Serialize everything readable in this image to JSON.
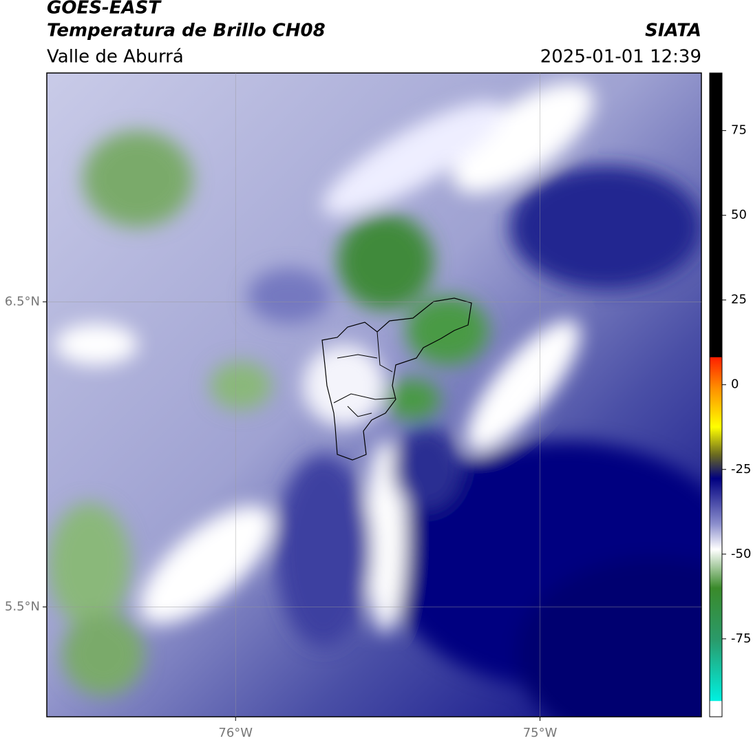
{
  "header": {
    "title": "GOES-EAST",
    "subtitle": "Temperatura de Brillo CH08",
    "region": "Valle de Aburrá",
    "agency": "SIATA",
    "datetime": "2025-01-01 12:39"
  },
  "map": {
    "xlim": [
      -76.62,
      -74.47
    ],
    "ylim": [
      5.14,
      7.25
    ],
    "lon_ticks": [
      {
        "value": -76,
        "label": "76°W"
      },
      {
        "value": -75,
        "label": "75°W"
      }
    ],
    "lat_ticks": [
      {
        "value": 6.5,
        "label": "6.5°N"
      },
      {
        "value": 5.5,
        "label": "5.5°N"
      }
    ]
  },
  "colorbar": {
    "lim": [
      -98,
      92
    ],
    "ticks": [
      75,
      50,
      25,
      0,
      -25,
      -50,
      -75
    ]
  }
}
